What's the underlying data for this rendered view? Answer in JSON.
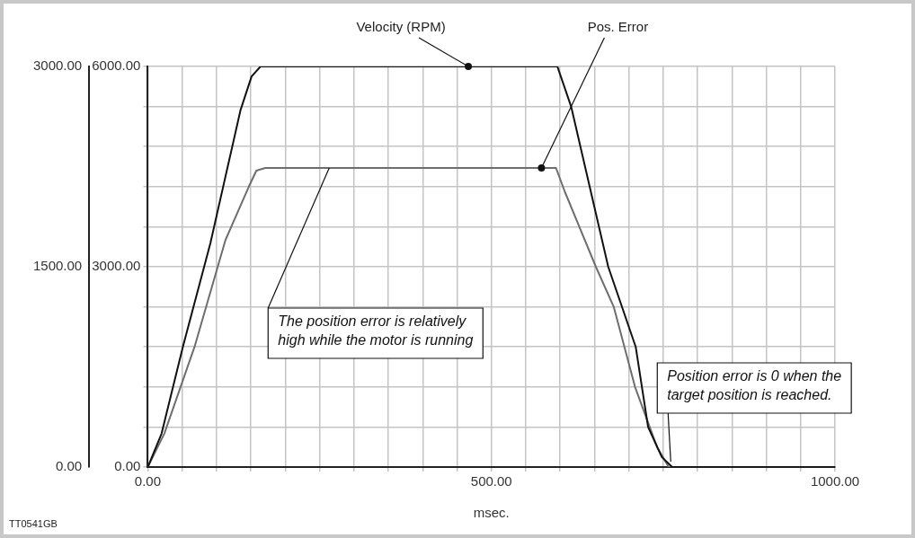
{
  "chart_data": {
    "type": "line",
    "xlabel": "msec.",
    "xlim": [
      0,
      1000
    ],
    "xticks": [
      {
        "value": 0,
        "label": "0.00"
      },
      {
        "value": 50,
        "label": null
      },
      {
        "value": 100,
        "label": null
      },
      {
        "value": 150,
        "label": null
      },
      {
        "value": 200,
        "label": null
      },
      {
        "value": 250,
        "label": null
      },
      {
        "value": 300,
        "label": null
      },
      {
        "value": 350,
        "label": null
      },
      {
        "value": 400,
        "label": null
      },
      {
        "value": 450,
        "label": null
      },
      {
        "value": 500,
        "label": "500.00"
      },
      {
        "value": 550,
        "label": null
      },
      {
        "value": 600,
        "label": null
      },
      {
        "value": 650,
        "label": null
      },
      {
        "value": 700,
        "label": null
      },
      {
        "value": 750,
        "label": null
      },
      {
        "value": 800,
        "label": null
      },
      {
        "value": 850,
        "label": null
      },
      {
        "value": 900,
        "label": null
      },
      {
        "value": 950,
        "label": null
      },
      {
        "value": 1000,
        "label": "1000.00"
      }
    ],
    "ylim": [
      0,
      6000
    ],
    "yticks": [
      {
        "value": 0,
        "label": "0.00"
      },
      {
        "value": 600,
        "label": null
      },
      {
        "value": 1200,
        "label": null
      },
      {
        "value": 1800,
        "label": null
      },
      {
        "value": 2400,
        "label": null
      },
      {
        "value": 3000,
        "label": "3000.00"
      },
      {
        "value": 3600,
        "label": null
      },
      {
        "value": 4200,
        "label": null
      },
      {
        "value": 4800,
        "label": null
      },
      {
        "value": 5400,
        "label": null
      },
      {
        "value": 6000,
        "label": "6000.00"
      }
    ],
    "y2lim": [
      0,
      3000
    ],
    "y2ticks": [
      {
        "value": 0,
        "label": "0.00"
      },
      {
        "value": 1500,
        "label": "1500.00"
      },
      {
        "value": 3000,
        "label": "3000.00"
      }
    ],
    "grid": true,
    "legend": false,
    "marker": "none",
    "line_style": "solid",
    "series": [
      {
        "name": "Velocity (RPM)",
        "color": "#111111",
        "x": [
          0,
          20,
          51,
          91,
          135,
          151,
          164,
          596,
          616,
          670,
          710,
          728,
          748,
          763,
          1000
        ],
        "values": [
          0,
          500,
          1800,
          3350,
          5350,
          5850,
          6000,
          6000,
          5400,
          3000,
          1800,
          600,
          150,
          0,
          0
        ]
      },
      {
        "name": "Pos. Error",
        "axis": "y2",
        "color": "#6e6e6e",
        "x": [
          0,
          24,
          68,
          113,
          147,
          158,
          171,
          594,
          607,
          652,
          678,
          709,
          741,
          758,
          1000
        ],
        "values": [
          0,
          250,
          900,
          1700,
          2100,
          2220,
          2240,
          2240,
          2060,
          1500,
          1200,
          600,
          150,
          0,
          0
        ]
      }
    ],
    "annotations": [
      {
        "text": "The position error is relatively high while the motor is running",
        "x": 264,
        "y": 4480
      },
      {
        "text": "Position error is 0 when the target position is reached.",
        "x": 761,
        "y": 0
      },
      "TT0541GB"
    ]
  }
}
